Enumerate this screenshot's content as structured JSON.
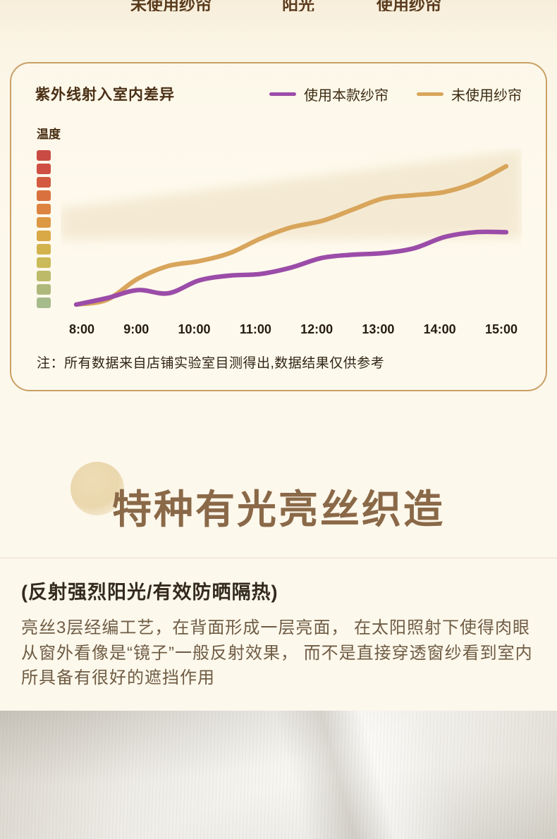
{
  "top_strip": {
    "left": "未使用纱帘",
    "mid": "阳光",
    "right": "使用纱帘"
  },
  "chart_card": {
    "title": "紫外线射入室内差异",
    "y_axis_label": "温度",
    "note": "注：所有数据来自店铺实验室目测得出,数据结果仅供参考",
    "legend": [
      {
        "label": "使用本款纱帘",
        "color": "#9b4ca8"
      },
      {
        "label": "未使用纱帘",
        "color": "#d8a55b"
      }
    ],
    "scale_colors": [
      "#c94b43",
      "#cf4f44",
      "#d45b40",
      "#d9713e",
      "#dc8440",
      "#dd9844",
      "#d9a847",
      "#d3b34d",
      "#cbba59",
      "#bdba69",
      "#afb87b",
      "#a6bb8b"
    ]
  },
  "chart_data": {
    "type": "line",
    "title": "紫外线射入室内差异",
    "xlabel": "",
    "ylabel": "温度",
    "x": [
      "8:00",
      "8:30",
      "9:00",
      "9:30",
      "10:00",
      "10:30",
      "11:00",
      "11:30",
      "12:00",
      "12:30",
      "13:00",
      "13:30",
      "14:00",
      "14:30",
      "15:00"
    ],
    "x_tick_labels": [
      "8:00",
      "9:00",
      "10:00",
      "11:00",
      "12:00",
      "13:00",
      "14:00",
      "15:00"
    ],
    "y_axis_note": "y axis shown as red-to-green temperature color scale, no numeric labels; values below are relative 0-100 estimates",
    "series": [
      {
        "name": "未使用纱帘",
        "color": "#d8a55b",
        "values": [
          4,
          7,
          20,
          28,
          31,
          36,
          45,
          52,
          56,
          63,
          70,
          72,
          74,
          80,
          90
        ]
      },
      {
        "name": "使用本款纱帘",
        "color": "#9b4ca8",
        "values": [
          4,
          8,
          13,
          11,
          19,
          22,
          23,
          27,
          33,
          35,
          36,
          39,
          46,
          49,
          49
        ]
      }
    ],
    "legend_position": "top",
    "grid": false
  },
  "section": {
    "title": "特种有光亮丝织造",
    "subtitle": "(反射强烈阳光/有效防晒隔热)",
    "body": "亮丝3层经编工艺，在背面形成一层亮面， 在太阳照射下使得肉眼从窗外看像是“镜子”一般反射效果， 而不是直接穿透窗纱看到室内所具备有很好的遮挡作用"
  }
}
